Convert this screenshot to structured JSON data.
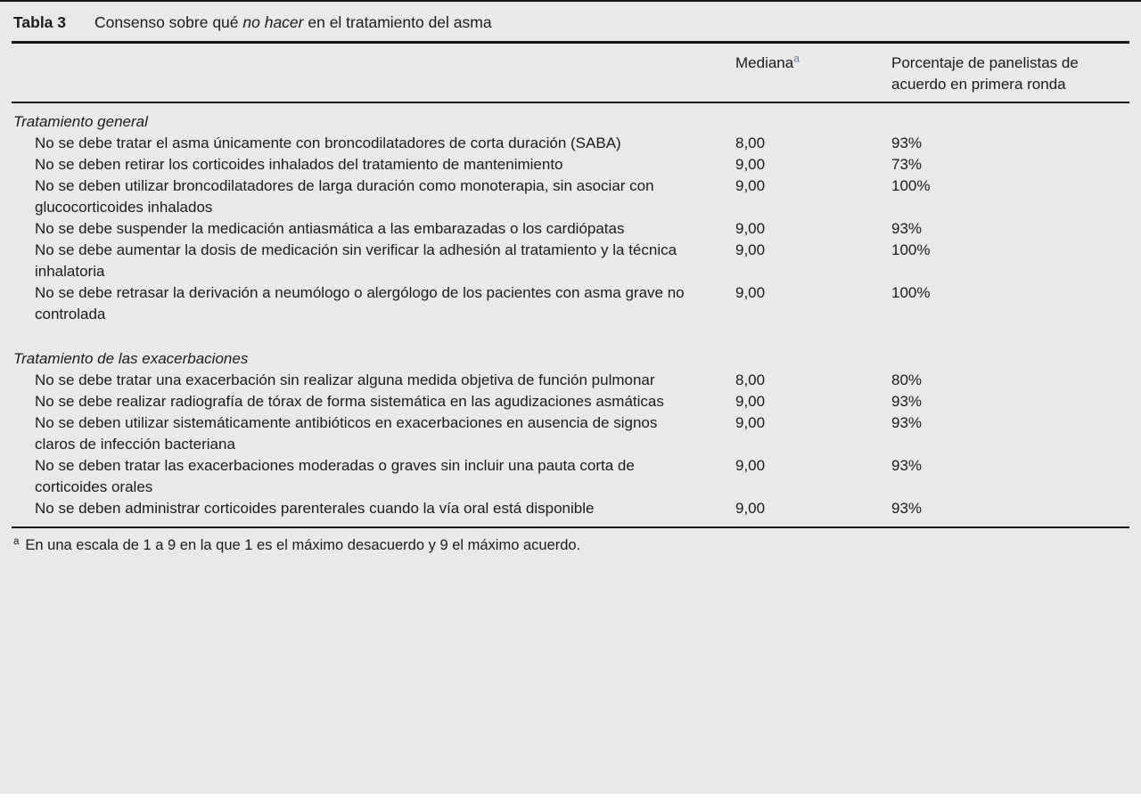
{
  "table": {
    "label": "Tabla 3",
    "title_prefix": "Consenso sobre qué ",
    "title_italic": "no hacer",
    "title_suffix": " en el tratamiento del asma",
    "columns": {
      "mediana_label": "Mediana",
      "mediana_superscript": "a",
      "percentage_label": "Porcentaje de panelistas de acuerdo en primera ronda"
    },
    "sections": [
      {
        "name": "Tratamiento general",
        "rows": [
          {
            "text": "No se debe tratar el asma únicamente con broncodilatadores de corta duración (SABA)",
            "mediana": "8,00",
            "percentage": "93%"
          },
          {
            "text": "No se deben retirar los corticoides inhalados del tratamiento de mantenimiento",
            "mediana": "9,00",
            "percentage": "73%"
          },
          {
            "text": "No se deben utilizar broncodilatadores de larga duración como monoterapia, sin asociar con glucocorticoides inhalados",
            "mediana": "9,00",
            "percentage": "100%"
          },
          {
            "text": "No se debe suspender la medicación antiasmática a las embarazadas o los cardiópatas",
            "mediana": "9,00",
            "percentage": "93%"
          },
          {
            "text": "No se debe aumentar la dosis de medicación sin verificar la adhesión al tratamiento y la técnica inhalatoria",
            "mediana": "9,00",
            "percentage": "100%"
          },
          {
            "text": "No se debe retrasar la derivación a neumólogo o alergólogo de los pacientes con asma grave no controlada",
            "mediana": "9,00",
            "percentage": "100%"
          }
        ]
      },
      {
        "name": "Tratamiento de las exacerbaciones",
        "rows": [
          {
            "text": "No se debe tratar una exacerbación sin realizar alguna medida objetiva de función pulmonar",
            "mediana": "8,00",
            "percentage": "80%"
          },
          {
            "text": "No se debe realizar radiografía de tórax de forma sistemática en las agudizaciones asmáticas",
            "mediana": "9,00",
            "percentage": "93%"
          },
          {
            "text": "No se deben utilizar sistemáticamente antibióticos en exacerbaciones en ausencia de signos claros de infección bacteriana",
            "mediana": "9,00",
            "percentage": "93%"
          },
          {
            "text": "No se deben tratar las exacerbaciones moderadas o graves sin incluir una pauta corta de corticoides orales",
            "mediana": "9,00",
            "percentage": "93%"
          },
          {
            "text": "No se deben administrar corticoides parenterales cuando la vía oral está disponible",
            "mediana": "9,00",
            "percentage": "93%"
          }
        ]
      }
    ],
    "footnote": {
      "marker": "a",
      "text": "En una escala de 1 a 9 en la que 1 es el máximo desacuerdo y 9 el máximo acuerdo."
    },
    "colors": {
      "background": "#e9e9e9",
      "text": "#1b1b1b",
      "rule": "#161616",
      "superscript_blue": "#2e8fc4"
    }
  }
}
